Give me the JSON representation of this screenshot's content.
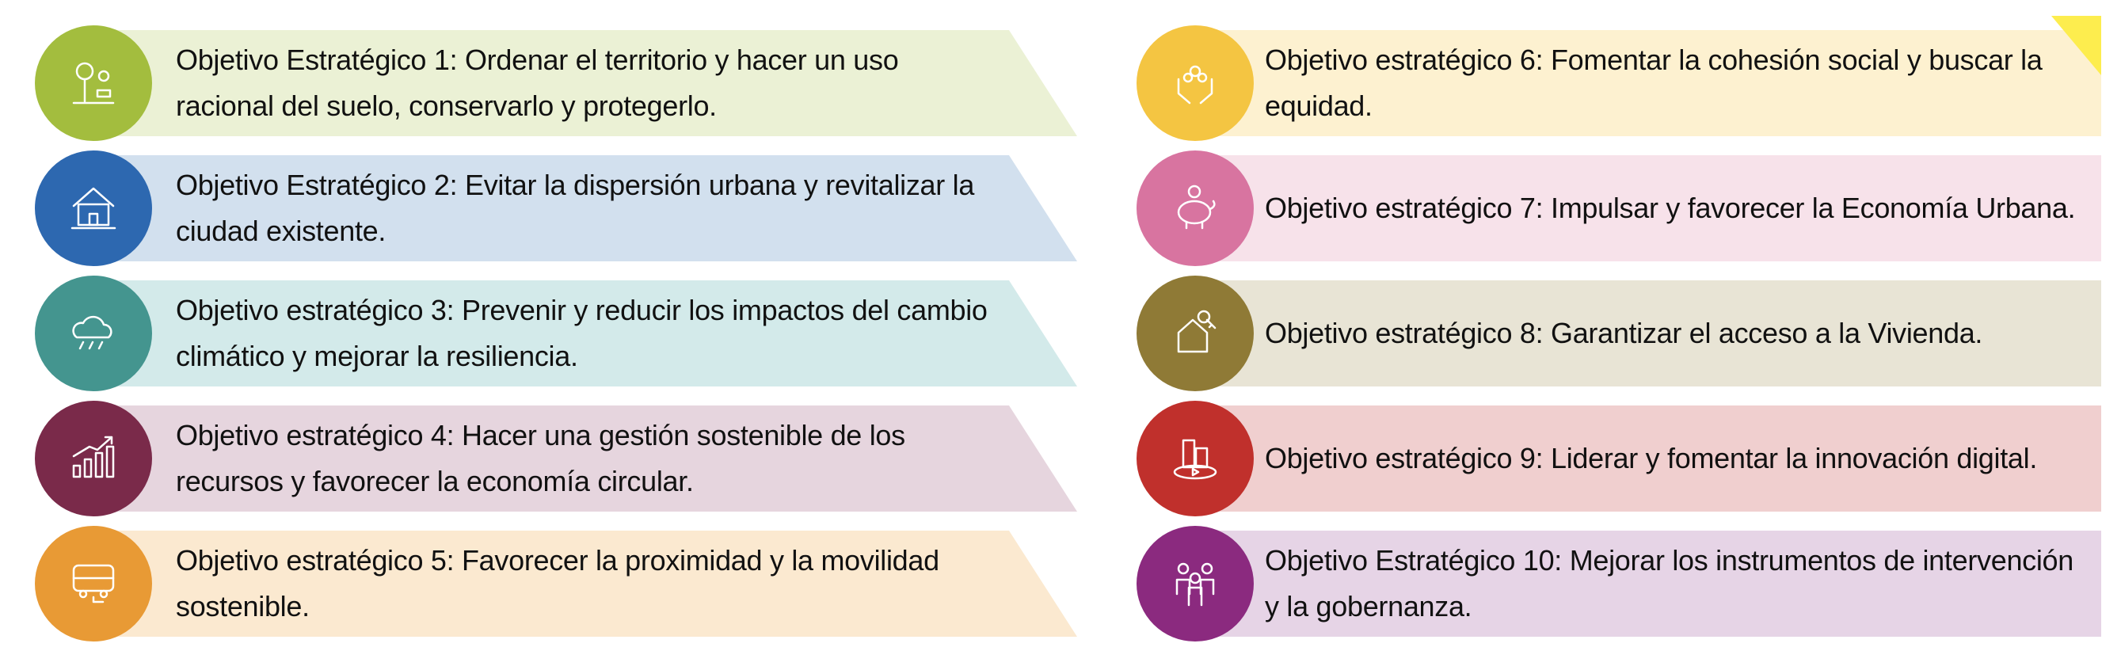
{
  "objectives": [
    {
      "text": "Objetivo Estratégico 1: Ordenar el territorio y hacer un uso racional del suelo, conservarlo y protegerlo.",
      "icon": "park-tree-icon",
      "color": "#a3bd3e",
      "band": "#ebf1d5"
    },
    {
      "text": "Objetivo Estratégico 2: Evitar la dispersión urbana y revitalizar la ciudad existente.",
      "icon": "houses-icon",
      "color": "#2d68b0",
      "band": "#d2e0ee"
    },
    {
      "text": "Objetivo estratégico 3: Prevenir y reducir los impactos del cambio climático y mejorar la resiliencia.",
      "icon": "storm-cloud-icon",
      "color": "#44958f",
      "band": "#d3eaea"
    },
    {
      "text": "Objetivo estratégico 4: Hacer una gestión sostenible de los recursos y favorecer la economía circular.",
      "icon": "growth-chart-icon",
      "color": "#7a2a4a",
      "band": "#e6d5de"
    },
    {
      "text": "Objetivo estratégico 5: Favorecer la proximidad y la movilidad sostenible.",
      "icon": "electric-bus-icon",
      "color": "#e89a35",
      "band": "#fbe9d0"
    },
    {
      "text": "Objetivo estratégico 6: Fomentar la cohesión social y buscar la equidad.",
      "icon": "hands-people-icon",
      "color": "#f4c542",
      "band": "#fdf1d0"
    },
    {
      "text": "Objetivo estratégico 7: Impulsar y favorecer la Economía Urbana.",
      "icon": "piggy-bank-icon",
      "color": "#d874a0",
      "band": "#f7e2ea"
    },
    {
      "text": "Objetivo estratégico 8: Garantizar el acceso a la Vivienda.",
      "icon": "house-key-icon",
      "color": "#8f7a36",
      "band": "#e8e4d5"
    },
    {
      "text": "Objetivo estratégico 9: Liderar y fomentar la innovación digital.",
      "icon": "digital-city-icon",
      "color": "#c0302c",
      "band": "#f0cfcf"
    },
    {
      "text": "Objetivo Estratégico 10: Mejorar los instrumentos de intervención y la gobernanza.",
      "icon": "people-group-icon",
      "color": "#8b2a7f",
      "band": "#e6d4e6"
    }
  ],
  "corner_color": "#fded4e"
}
